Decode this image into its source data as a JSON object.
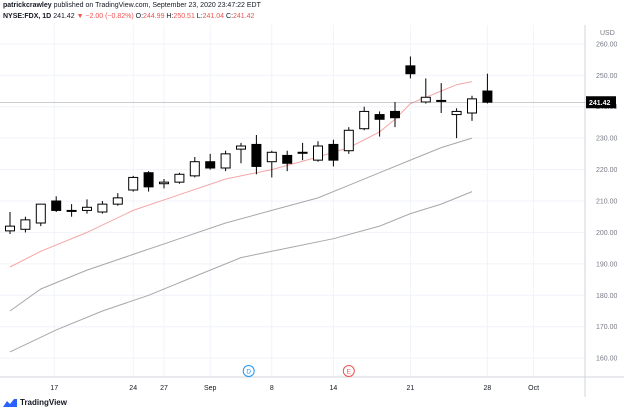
{
  "header": {
    "user": "patrickcrawley",
    "published": "published on TradingView.com, September 23, 2020 23:47:22 EDT",
    "symbol": "NYSE:FDX, 1D",
    "last": "241.42",
    "change": "▼ −2.00 (−0.82%)",
    "o_label": "O:",
    "o": "244.99",
    "h_label": "H:",
    "h": "250.51",
    "l_label": "L:",
    "l": "241.04",
    "c_label": "C:",
    "c": "241.42"
  },
  "brand": {
    "name": "TradingView"
  },
  "colors": {
    "up_fill": "#ffffff",
    "down_fill": "#000000",
    "candle_border": "#000000",
    "ma_fast": "#f4a6a6",
    "ma_slow": "#a8a8a8",
    "grid": "#f0f3fa",
    "price_tag": "#000000"
  },
  "chart_data": {
    "type": "candlestick",
    "symbol": "NYSE:FDX",
    "interval": "1D",
    "currency_label": "USD",
    "last_price_label": "241.42",
    "ylim": [
      154,
      266
    ],
    "y_ticks": [
      160,
      170,
      180,
      190,
      200,
      210,
      220,
      230,
      240,
      250,
      260
    ],
    "y_tick_labels": [
      "160.00",
      "170.00",
      "180.00",
      "190.00",
      "200.00",
      "210.00",
      "220.00",
      "230.00",
      "240.00",
      "250.00",
      "260.00"
    ],
    "x_tick_labels": [
      {
        "label": "17",
        "index": 3
      },
      {
        "label": "24",
        "index": 8
      },
      {
        "label": "27",
        "index": 10
      },
      {
        "label": "Sep",
        "index": 13
      },
      {
        "label": "8",
        "index": 17
      },
      {
        "label": "14",
        "index": 21
      },
      {
        "label": "21",
        "index": 26
      },
      {
        "label": "28",
        "index": 31
      },
      {
        "label": "Oct",
        "index": 34
      }
    ],
    "markers": [
      {
        "label": "D",
        "index": 15.5,
        "color": "#2196f3"
      },
      {
        "label": "E",
        "index": 22,
        "color": "#ef5350"
      }
    ],
    "candles": [
      {
        "o": 200.5,
        "h": 206.5,
        "l": 199.5,
        "c": 202.0
      },
      {
        "o": 201.0,
        "h": 205.0,
        "l": 200.0,
        "c": 204.0
      },
      {
        "o": 203.0,
        "h": 209.0,
        "l": 202.0,
        "c": 209.0
      },
      {
        "o": 210.0,
        "h": 211.5,
        "l": 206.5,
        "c": 207.0
      },
      {
        "o": 207.0,
        "h": 209.0,
        "l": 205.0,
        "c": 207.0
      },
      {
        "o": 207.0,
        "h": 210.5,
        "l": 206.0,
        "c": 208.0
      },
      {
        "o": 206.5,
        "h": 210.0,
        "l": 206.0,
        "c": 209.0
      },
      {
        "o": 209.0,
        "h": 212.5,
        "l": 208.5,
        "c": 211.0
      },
      {
        "o": 213.5,
        "h": 218.0,
        "l": 213.0,
        "c": 217.5
      },
      {
        "o": 219.0,
        "h": 219.5,
        "l": 213.0,
        "c": 214.5
      },
      {
        "o": 215.5,
        "h": 217.0,
        "l": 214.0,
        "c": 216.0
      },
      {
        "o": 216.0,
        "h": 219.0,
        "l": 215.5,
        "c": 218.5
      },
      {
        "o": 218.0,
        "h": 224.0,
        "l": 217.5,
        "c": 222.5
      },
      {
        "o": 222.5,
        "h": 225.0,
        "l": 220.0,
        "c": 220.5
      },
      {
        "o": 220.5,
        "h": 226.0,
        "l": 219.5,
        "c": 225.0
      },
      {
        "o": 226.5,
        "h": 228.5,
        "l": 222.0,
        "c": 227.5
      },
      {
        "o": 228.0,
        "h": 231.0,
        "l": 218.5,
        "c": 221.0
      },
      {
        "o": 222.5,
        "h": 226.0,
        "l": 217.5,
        "c": 225.5
      },
      {
        "o": 224.5,
        "h": 226.0,
        "l": 219.5,
        "c": 222.0
      },
      {
        "o": 225.5,
        "h": 228.5,
        "l": 223.0,
        "c": 225.5
      },
      {
        "o": 223.0,
        "h": 229.0,
        "l": 222.5,
        "c": 227.5
      },
      {
        "o": 228.0,
        "h": 229.5,
        "l": 221.0,
        "c": 223.0
      },
      {
        "o": 226.0,
        "h": 233.5,
        "l": 225.0,
        "c": 232.5
      },
      {
        "o": 233.0,
        "h": 240.0,
        "l": 232.5,
        "c": 238.5
      },
      {
        "o": 237.5,
        "h": 238.5,
        "l": 230.5,
        "c": 236.0
      },
      {
        "o": 238.5,
        "h": 241.5,
        "l": 233.5,
        "c": 236.5
      }
    ],
    "candles_b": [
      {
        "o": 253.0,
        "h": 256.0,
        "l": 249.0,
        "c": 250.5
      },
      {
        "o": 241.5,
        "h": 249.0,
        "l": 241.0,
        "c": 243.0
      },
      {
        "o": 242.0,
        "h": 247.5,
        "l": 238.0,
        "c": 242.0
      },
      {
        "o": 237.5,
        "h": 239.5,
        "l": 230.0,
        "c": 238.5
      },
      {
        "o": 238.0,
        "h": 243.5,
        "l": 235.5,
        "c": 242.5
      },
      {
        "o": 244.99,
        "h": 250.51,
        "l": 241.04,
        "c": 241.42
      }
    ],
    "series": [
      {
        "values": [
          [
            0,
            189
          ],
          [
            2,
            194
          ],
          [
            5,
            200
          ],
          [
            8,
            207
          ],
          [
            11,
            212
          ],
          [
            14,
            217
          ],
          [
            17,
            220
          ],
          [
            20,
            224
          ],
          [
            22,
            227
          ],
          [
            24,
            232
          ],
          [
            25,
            236
          ],
          [
            26,
            241
          ],
          [
            27,
            243
          ],
          [
            28,
            245
          ],
          [
            29,
            247
          ],
          [
            30,
            248
          ]
        ]
      },
      {
        "values": [
          [
            0,
            175
          ],
          [
            2,
            182
          ],
          [
            5,
            188
          ],
          [
            8,
            193
          ],
          [
            11,
            198
          ],
          [
            14,
            203
          ],
          [
            17,
            207
          ],
          [
            20,
            211
          ],
          [
            22,
            215
          ],
          [
            24,
            219
          ],
          [
            26,
            223
          ],
          [
            28,
            227
          ],
          [
            30,
            230
          ]
        ]
      },
      {
        "values": [
          [
            0,
            162
          ],
          [
            3,
            169
          ],
          [
            6,
            175
          ],
          [
            9,
            180
          ],
          [
            12,
            186
          ],
          [
            15,
            192
          ],
          [
            18,
            195
          ],
          [
            21,
            198
          ],
          [
            24,
            202
          ],
          [
            26,
            206
          ],
          [
            28,
            209
          ],
          [
            30,
            213
          ]
        ]
      }
    ]
  }
}
